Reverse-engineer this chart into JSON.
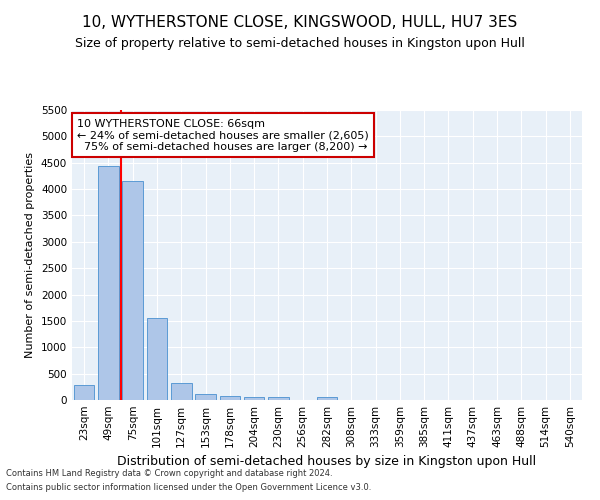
{
  "title": "10, WYTHERSTONE CLOSE, KINGSWOOD, HULL, HU7 3ES",
  "subtitle": "Size of property relative to semi-detached houses in Kingston upon Hull",
  "xlabel": "Distribution of semi-detached houses by size in Kingston upon Hull",
  "ylabel": "Number of semi-detached properties",
  "footnote1": "Contains HM Land Registry data © Crown copyright and database right 2024.",
  "footnote2": "Contains public sector information licensed under the Open Government Licence v3.0.",
  "categories": [
    "23sqm",
    "49sqm",
    "75sqm",
    "101sqm",
    "127sqm",
    "153sqm",
    "178sqm",
    "204sqm",
    "230sqm",
    "256sqm",
    "282sqm",
    "308sqm",
    "333sqm",
    "359sqm",
    "385sqm",
    "411sqm",
    "437sqm",
    "463sqm",
    "488sqm",
    "514sqm",
    "540sqm"
  ],
  "values": [
    280,
    4430,
    4160,
    1560,
    330,
    120,
    75,
    60,
    60,
    0,
    60,
    0,
    0,
    0,
    0,
    0,
    0,
    0,
    0,
    0,
    0
  ],
  "bar_color": "#aec6e8",
  "bar_edgecolor": "#5b9bd5",
  "property_label": "10 WYTHERSTONE CLOSE: 66sqm",
  "pct_smaller": 24,
  "n_smaller": "2,605",
  "pct_larger": 75,
  "n_larger": "8,200",
  "vline_x": 1.5,
  "ylim": [
    0,
    5500
  ],
  "yticks": [
    0,
    500,
    1000,
    1500,
    2000,
    2500,
    3000,
    3500,
    4000,
    4500,
    5000,
    5500
  ],
  "bg_color": "#e8f0f8",
  "grid_color": "#ffffff",
  "annotation_box_color": "#ffffff",
  "annotation_box_edgecolor": "#cc0000",
  "title_fontsize": 11,
  "subtitle_fontsize": 9,
  "xlabel_fontsize": 9,
  "ylabel_fontsize": 8,
  "tick_fontsize": 7.5,
  "annotation_fontsize": 8
}
